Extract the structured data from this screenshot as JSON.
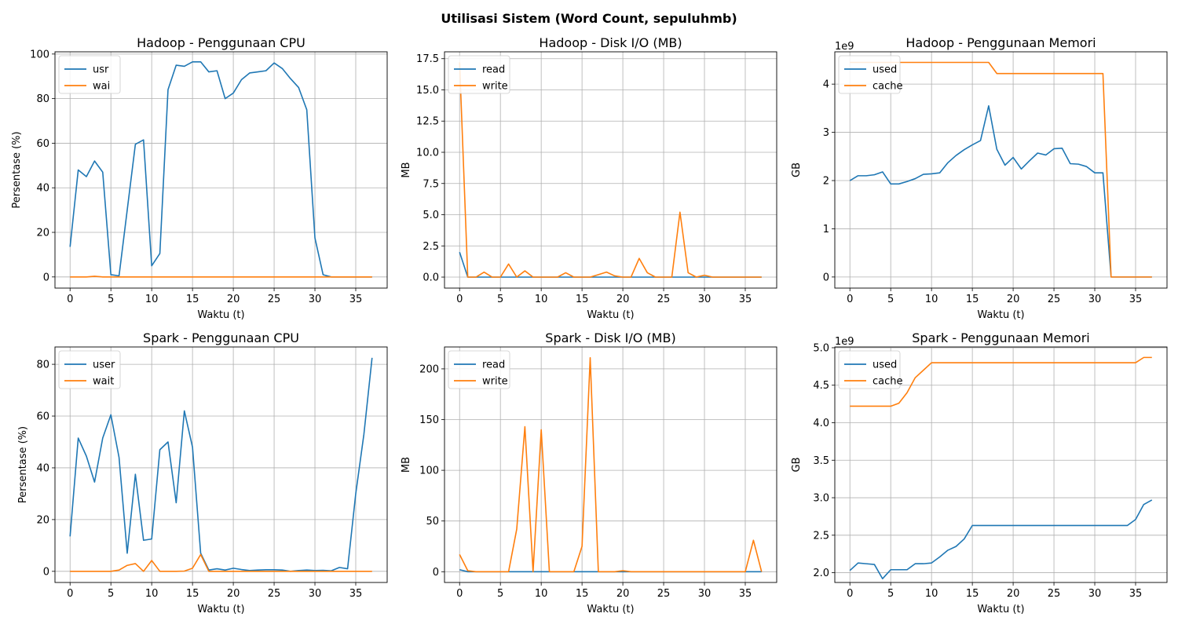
{
  "figure": {
    "suptitle": "Utilisasi Sistem (Word Count, sepuluhmb)"
  },
  "colors": {
    "series1": "#1f77b4",
    "series2": "#ff7f0e",
    "grid": "#b0b0b0"
  },
  "chart_data": [
    {
      "type": "line",
      "title": "Hadoop - Penggunaan CPU",
      "xlabel": "Waktu (t)",
      "ylabel": "Persentase (%)",
      "xlim": [
        -1.85,
        38.85
      ],
      "ylim": [
        -5,
        101
      ],
      "xticks": [
        0,
        5,
        10,
        15,
        20,
        25,
        30,
        35
      ],
      "yticks": [
        0,
        20,
        40,
        60,
        80,
        100
      ],
      "ytick_labels": [
        "0",
        "20",
        "40",
        "60",
        "80",
        "100"
      ],
      "offset_text": "",
      "grid": true,
      "legend": "top-left",
      "x": [
        0,
        1,
        2,
        3,
        4,
        5,
        6,
        7,
        8,
        9,
        10,
        11,
        12,
        13,
        14,
        15,
        16,
        17,
        18,
        19,
        20,
        21,
        22,
        23,
        24,
        25,
        26,
        27,
        28,
        29,
        30,
        31,
        32,
        33,
        34,
        35,
        36,
        37
      ],
      "series": [
        {
          "name": "usr",
          "color": "#1f77b4",
          "values": [
            13.5,
            48,
            45,
            52,
            47,
            1,
            0.5,
            30,
            59.5,
            61.5,
            5,
            10.5,
            84,
            95,
            94.5,
            96.5,
            96.5,
            92,
            92.5,
            80,
            82.5,
            88.5,
            91.5,
            92,
            92.5,
            96,
            93.5,
            89,
            85,
            75,
            17.5,
            1,
            0,
            0,
            0,
            0,
            0,
            0
          ]
        },
        {
          "name": "wai",
          "color": "#ff7f0e",
          "values": [
            0,
            0,
            0,
            0.3,
            0,
            0,
            0,
            0,
            0,
            0,
            0,
            0,
            0,
            0,
            0,
            0,
            0,
            0,
            0,
            0,
            0,
            0,
            0,
            0,
            0,
            0,
            0,
            0,
            0,
            0,
            0,
            0,
            0,
            0,
            0,
            0,
            0,
            0
          ]
        }
      ]
    },
    {
      "type": "line",
      "title": "Hadoop - Disk I/O (MB)",
      "xlabel": "Waktu (t)",
      "ylabel": "MB",
      "xlim": [
        -1.85,
        38.85
      ],
      "ylim": [
        -0.88,
        18.05
      ],
      "xticks": [
        0,
        5,
        10,
        15,
        20,
        25,
        30,
        35
      ],
      "yticks": [
        0,
        2.5,
        5,
        7.5,
        10,
        12.5,
        15,
        17.5
      ],
      "ytick_labels": [
        "0.0",
        "2.5",
        "5.0",
        "7.5",
        "10.0",
        "12.5",
        "15.0",
        "17.5"
      ],
      "offset_text": "",
      "grid": true,
      "legend": "top-left",
      "x": [
        0,
        1,
        2,
        3,
        4,
        5,
        6,
        7,
        8,
        9,
        10,
        11,
        12,
        13,
        14,
        15,
        16,
        17,
        18,
        19,
        20,
        21,
        22,
        23,
        24,
        25,
        26,
        27,
        28,
        29,
        30,
        31,
        32,
        33,
        34,
        35,
        36,
        37
      ],
      "series": [
        {
          "name": "read",
          "color": "#1f77b4",
          "values": [
            2.0,
            0,
            0,
            0,
            0,
            0,
            0,
            0,
            0,
            0,
            0,
            0,
            0,
            0,
            0,
            0,
            0,
            0,
            0,
            0,
            0,
            0,
            0,
            0,
            0,
            0,
            0,
            0,
            0,
            0,
            0,
            0,
            0,
            0,
            0,
            0,
            0,
            0
          ]
        },
        {
          "name": "write",
          "color": "#ff7f0e",
          "values": [
            17.2,
            0,
            0,
            0.4,
            0,
            0,
            1.05,
            0,
            0.5,
            0,
            0,
            0,
            0,
            0.35,
            0,
            0,
            0,
            0.2,
            0.4,
            0.1,
            0,
            0,
            1.5,
            0.35,
            0,
            0,
            0,
            5.2,
            0.35,
            0,
            0.15,
            0,
            0,
            0,
            0,
            0,
            0,
            0
          ]
        }
      ]
    },
    {
      "type": "line",
      "title": "Hadoop - Penggunaan Memori",
      "xlabel": "Waktu (t)",
      "ylabel": "GB",
      "xlim": [
        -1.85,
        38.85
      ],
      "ylim": [
        -0.23,
        4.67
      ],
      "xticks": [
        0,
        5,
        10,
        15,
        20,
        25,
        30,
        35
      ],
      "yticks": [
        0,
        1,
        2,
        3,
        4
      ],
      "ytick_labels": [
        "0",
        "1",
        "2",
        "3",
        "4"
      ],
      "offset_text": "1e9",
      "grid": true,
      "legend": "top-left",
      "x": [
        0,
        1,
        2,
        3,
        4,
        5,
        6,
        7,
        8,
        9,
        10,
        11,
        12,
        13,
        14,
        15,
        16,
        17,
        18,
        19,
        20,
        21,
        22,
        23,
        24,
        25,
        26,
        27,
        28,
        29,
        30,
        31,
        32,
        33,
        34,
        35,
        36,
        37
      ],
      "series": [
        {
          "name": "used",
          "color": "#1f77b4",
          "values": [
            2.0,
            2.1,
            2.1,
            2.12,
            2.18,
            1.93,
            1.93,
            1.98,
            2.04,
            2.13,
            2.14,
            2.16,
            2.37,
            2.52,
            2.64,
            2.74,
            2.83,
            3.55,
            2.65,
            2.32,
            2.48,
            2.24,
            2.41,
            2.57,
            2.53,
            2.66,
            2.67,
            2.35,
            2.34,
            2.29,
            2.16,
            2.16,
            0,
            0,
            0,
            0,
            0,
            0
          ]
        },
        {
          "name": "cache",
          "color": "#ff7f0e",
          "values": [
            4.45,
            4.45,
            4.45,
            4.45,
            4.45,
            4.45,
            4.45,
            4.45,
            4.45,
            4.45,
            4.45,
            4.45,
            4.45,
            4.45,
            4.45,
            4.45,
            4.45,
            4.45,
            4.22,
            4.22,
            4.22,
            4.22,
            4.22,
            4.22,
            4.22,
            4.22,
            4.22,
            4.22,
            4.22,
            4.22,
            4.22,
            4.22,
            0,
            0,
            0,
            0,
            0,
            0
          ]
        }
      ]
    },
    {
      "type": "line",
      "title": "Spark - Penggunaan CPU",
      "xlabel": "Waktu (t)",
      "ylabel": "Persentase (%)",
      "xlim": [
        -1.85,
        38.85
      ],
      "ylim": [
        -4.3,
        86.7
      ],
      "xticks": [
        0,
        5,
        10,
        15,
        20,
        25,
        30,
        35
      ],
      "yticks": [
        0,
        20,
        40,
        60,
        80
      ],
      "ytick_labels": [
        "0",
        "20",
        "40",
        "60",
        "80"
      ],
      "offset_text": "",
      "grid": true,
      "legend": "top-left",
      "x": [
        0,
        1,
        2,
        3,
        4,
        5,
        6,
        7,
        8,
        9,
        10,
        11,
        12,
        13,
        14,
        15,
        16,
        17,
        18,
        19,
        20,
        21,
        22,
        23,
        24,
        25,
        26,
        27,
        28,
        29,
        30,
        31,
        32,
        33,
        34,
        35,
        36,
        37
      ],
      "series": [
        {
          "name": "user",
          "color": "#1f77b4",
          "values": [
            13.5,
            51.5,
            44.5,
            34.5,
            51.5,
            60.5,
            44,
            7,
            37.5,
            12,
            12.5,
            47,
            50,
            26.5,
            62,
            48,
            7,
            0.5,
            1,
            0.5,
            1.2,
            0.7,
            0.3,
            0.5,
            0.6,
            0.6,
            0.5,
            0,
            0.3,
            0.5,
            0.3,
            0.4,
            0.2,
            1.5,
            1,
            30,
            53,
            82.5
          ]
        },
        {
          "name": "wait",
          "color": "#ff7f0e",
          "values": [
            0,
            0,
            0,
            0,
            0,
            0,
            0.5,
            2.3,
            3,
            0,
            4.2,
            0,
            0,
            0,
            0.1,
            1.2,
            6.5,
            0,
            0,
            0,
            0,
            0,
            0,
            0,
            0,
            0,
            0,
            0,
            0,
            0,
            0,
            0,
            0,
            0,
            0,
            0,
            0,
            0
          ]
        }
      ]
    },
    {
      "type": "line",
      "title": "Spark - Disk I/O (MB)",
      "xlabel": "Waktu (t)",
      "ylabel": "MB",
      "xlim": [
        -1.85,
        38.85
      ],
      "ylim": [
        -10.6,
        221.6
      ],
      "xticks": [
        0,
        5,
        10,
        15,
        20,
        25,
        30,
        35
      ],
      "yticks": [
        0,
        50,
        100,
        150,
        200
      ],
      "ytick_labels": [
        "0",
        "50",
        "100",
        "150",
        "200"
      ],
      "offset_text": "",
      "grid": true,
      "legend": "top-left",
      "x": [
        0,
        1,
        2,
        3,
        4,
        5,
        6,
        7,
        8,
        9,
        10,
        11,
        12,
        13,
        14,
        15,
        16,
        17,
        18,
        19,
        20,
        21,
        22,
        23,
        24,
        25,
        26,
        27,
        28,
        29,
        30,
        31,
        32,
        33,
        34,
        35,
        36,
        37
      ],
      "series": [
        {
          "name": "read",
          "color": "#1f77b4",
          "values": [
            2,
            0,
            0,
            0,
            0,
            0,
            0,
            0,
            0,
            0,
            0,
            0,
            0,
            0,
            0,
            0,
            0,
            0,
            0,
            0,
            0,
            0,
            0,
            0,
            0,
            0,
            0,
            0,
            0,
            0,
            0,
            0,
            0,
            0,
            0,
            0,
            0,
            0
          ]
        },
        {
          "name": "write",
          "color": "#ff7f0e",
          "values": [
            17,
            1,
            0,
            0,
            0,
            0,
            0,
            42,
            143,
            0,
            140,
            0,
            0,
            0,
            0,
            25,
            211,
            0,
            0,
            0,
            1,
            0,
            0,
            0,
            0,
            0,
            0,
            0,
            0,
            0,
            0,
            0,
            0,
            0,
            0,
            0,
            31,
            0
          ]
        }
      ]
    },
    {
      "type": "line",
      "title": "Spark - Penggunaan Memori",
      "xlabel": "Waktu (t)",
      "ylabel": "GB",
      "xlim": [
        -1.85,
        38.85
      ],
      "ylim": [
        1.87,
        5.01
      ],
      "xticks": [
        0,
        5,
        10,
        15,
        20,
        25,
        30,
        35
      ],
      "yticks": [
        2.0,
        2.5,
        3.0,
        3.5,
        4.0,
        4.5,
        5.0
      ],
      "ytick_labels": [
        "2.0",
        "2.5",
        "3.0",
        "3.5",
        "4.0",
        "4.5",
        "5.0"
      ],
      "offset_text": "1e9",
      "grid": true,
      "legend": "top-left",
      "x": [
        0,
        1,
        2,
        3,
        4,
        5,
        6,
        7,
        8,
        9,
        10,
        11,
        12,
        13,
        14,
        15,
        16,
        17,
        18,
        19,
        20,
        21,
        22,
        23,
        24,
        25,
        26,
        27,
        28,
        29,
        30,
        31,
        32,
        33,
        34,
        35,
        36,
        37
      ],
      "series": [
        {
          "name": "used",
          "color": "#1f77b4",
          "values": [
            2.03,
            2.13,
            2.12,
            2.11,
            1.92,
            2.04,
            2.04,
            2.04,
            2.12,
            2.12,
            2.13,
            2.21,
            2.3,
            2.35,
            2.45,
            2.63,
            2.63,
            2.63,
            2.63,
            2.63,
            2.63,
            2.63,
            2.63,
            2.63,
            2.63,
            2.63,
            2.63,
            2.63,
            2.63,
            2.63,
            2.63,
            2.63,
            2.63,
            2.63,
            2.63,
            2.71,
            2.91,
            2.97
          ]
        },
        {
          "name": "cache",
          "color": "#ff7f0e",
          "values": [
            4.22,
            4.22,
            4.22,
            4.22,
            4.22,
            4.22,
            4.26,
            4.4,
            4.6,
            4.7,
            4.8,
            4.8,
            4.8,
            4.8,
            4.8,
            4.8,
            4.8,
            4.8,
            4.8,
            4.8,
            4.8,
            4.8,
            4.8,
            4.8,
            4.8,
            4.8,
            4.8,
            4.8,
            4.8,
            4.8,
            4.8,
            4.8,
            4.8,
            4.8,
            4.8,
            4.8,
            4.87,
            4.87
          ]
        }
      ]
    }
  ]
}
